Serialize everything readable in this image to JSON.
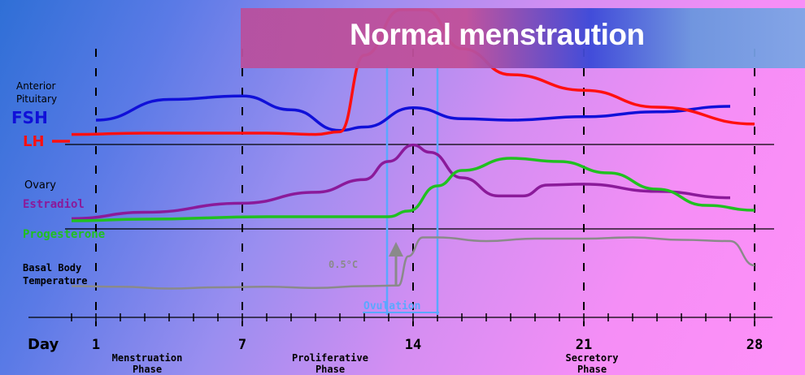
{
  "title": "Normal menstraution",
  "chart_data": {
    "type": "line",
    "xlabel": "Day",
    "x_ticks": [
      "1",
      "7",
      "14",
      "21",
      "28"
    ],
    "xlim": [
      0,
      28
    ],
    "phases": [
      {
        "name": [
          "Menstruation",
          "Phase"
        ]
      },
      {
        "name": [
          "Proliferative",
          "Phase"
        ]
      },
      {
        "name": [
          "Secretory",
          "Phase"
        ]
      }
    ],
    "panels": [
      {
        "label": [
          "Anterior",
          "Pituitary"
        ]
      },
      {
        "label": [
          "Ovary"
        ]
      },
      {
        "label": [
          "Basal Body",
          "Temperature"
        ]
      }
    ],
    "series": [
      {
        "name": "FSH",
        "color": "#1010d8",
        "points": [
          [
            1,
            0.2
          ],
          [
            4,
            0.5
          ],
          [
            7,
            0.55
          ],
          [
            9,
            0.35
          ],
          [
            11,
            0.05
          ],
          [
            12,
            0.1
          ],
          [
            14,
            0.38
          ],
          [
            16,
            0.22
          ],
          [
            18,
            0.2
          ],
          [
            21,
            0.25
          ],
          [
            24,
            0.32
          ],
          [
            27,
            0.4
          ]
        ]
      },
      {
        "name": "LH",
        "color": "#ff1010",
        "points": [
          [
            0,
            0.04
          ],
          [
            3,
            0.05
          ],
          [
            8,
            0.05
          ],
          [
            10,
            0.04
          ],
          [
            11,
            0.06
          ],
          [
            12,
            0.65
          ],
          [
            13.5,
            1.0
          ],
          [
            14.5,
            1.0
          ],
          [
            16,
            0.7
          ],
          [
            18,
            0.5
          ],
          [
            21,
            0.38
          ],
          [
            24,
            0.25
          ],
          [
            28,
            0.12
          ]
        ]
      },
      {
        "name": "Estradiol",
        "color": "#8b1a9a",
        "points": [
          [
            0,
            0.05
          ],
          [
            3,
            0.12
          ],
          [
            7,
            0.22
          ],
          [
            10,
            0.34
          ],
          [
            12,
            0.48
          ],
          [
            13,
            0.68
          ],
          [
            14,
            0.86
          ],
          [
            14.7,
            0.78
          ],
          [
            16,
            0.5
          ],
          [
            17.5,
            0.3
          ],
          [
            18.5,
            0.3
          ],
          [
            19.5,
            0.42
          ],
          [
            21,
            0.43
          ],
          [
            24,
            0.35
          ],
          [
            27,
            0.28
          ]
        ]
      },
      {
        "name": "Progesterone",
        "color": "#20c020",
        "points": [
          [
            0,
            0.03
          ],
          [
            3,
            0.05
          ],
          [
            8,
            0.08
          ],
          [
            13,
            0.08
          ],
          [
            13.8,
            0.15
          ],
          [
            15,
            0.46
          ],
          [
            16,
            0.65
          ],
          [
            18,
            0.8
          ],
          [
            20,
            0.76
          ],
          [
            22,
            0.62
          ],
          [
            24,
            0.42
          ],
          [
            26,
            0.22
          ],
          [
            28,
            0.16
          ]
        ]
      },
      {
        "name": "Basal Body Temperature",
        "color": "#8a8a8a",
        "points": [
          [
            0,
            0.06
          ],
          [
            2,
            0.05
          ],
          [
            4,
            0.02
          ],
          [
            6,
            0.04
          ],
          [
            8,
            0.05
          ],
          [
            10,
            0.03
          ],
          [
            12,
            0.06
          ],
          [
            13.4,
            0.07
          ],
          [
            13.8,
            0.55
          ],
          [
            14.4,
            0.86
          ],
          [
            15,
            0.86
          ],
          [
            17,
            0.8
          ],
          [
            19,
            0.84
          ],
          [
            21,
            0.84
          ],
          [
            23,
            0.86
          ],
          [
            25,
            0.82
          ],
          [
            27,
            0.8
          ],
          [
            28,
            0.4
          ]
        ]
      }
    ],
    "annotations": {
      "ovulation": "Ovulation",
      "temp_rise": "0.5°C"
    }
  }
}
